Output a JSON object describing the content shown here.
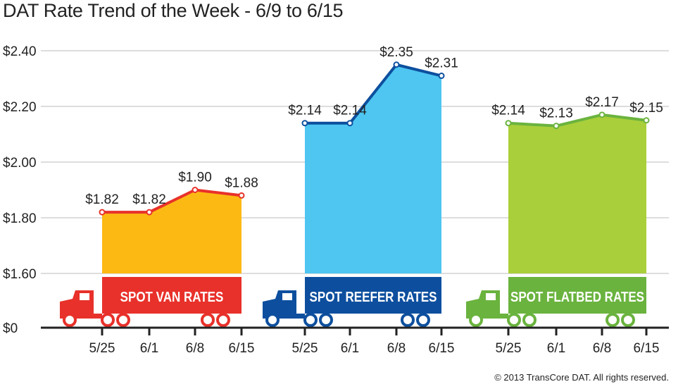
{
  "chart_data": {
    "type": "area",
    "title": "DAT Rate Trend of the Week - 6/9 to 6/15",
    "footer": "© 2013 TransCore DAT. All rights reserved.",
    "y_ticks": [
      "$0",
      "$1.60",
      "$1.80",
      "$2.00",
      "$2.20",
      "$2.40"
    ],
    "y_tick_values": [
      0,
      1.6,
      1.8,
      2.0,
      2.2,
      2.4
    ],
    "ylim": [
      1.6,
      2.4
    ],
    "axis_break": "values below $1.60 compressed to $0 baseline",
    "grid": true,
    "categories": [
      "5/25",
      "6/1",
      "6/8",
      "6/15"
    ],
    "series": [
      {
        "name": "SPOT VAN RATES",
        "values": [
          1.82,
          1.82,
          1.9,
          1.88
        ],
        "labels": [
          "$1.82",
          "$1.82",
          "$1.90",
          "$1.88"
        ],
        "fill": "#fdb913",
        "line": "#e8312a",
        "truck": "#e8312a"
      },
      {
        "name": "SPOT REEFER RATES",
        "values": [
          2.14,
          2.14,
          2.35,
          2.31
        ],
        "labels": [
          "$2.14",
          "$2.14",
          "$2.35",
          "$2.31"
        ],
        "fill": "#4ec6f1",
        "line": "#0d4f9e",
        "truck": "#0d4f9e"
      },
      {
        "name": "SPOT FLATBED RATES",
        "values": [
          2.14,
          2.13,
          2.17,
          2.15
        ],
        "labels": [
          "$2.14",
          "$2.13",
          "$2.17",
          "$2.15"
        ],
        "fill": "#a9cf3a",
        "line": "#6ab33e",
        "truck": "#6ab33e"
      }
    ]
  }
}
